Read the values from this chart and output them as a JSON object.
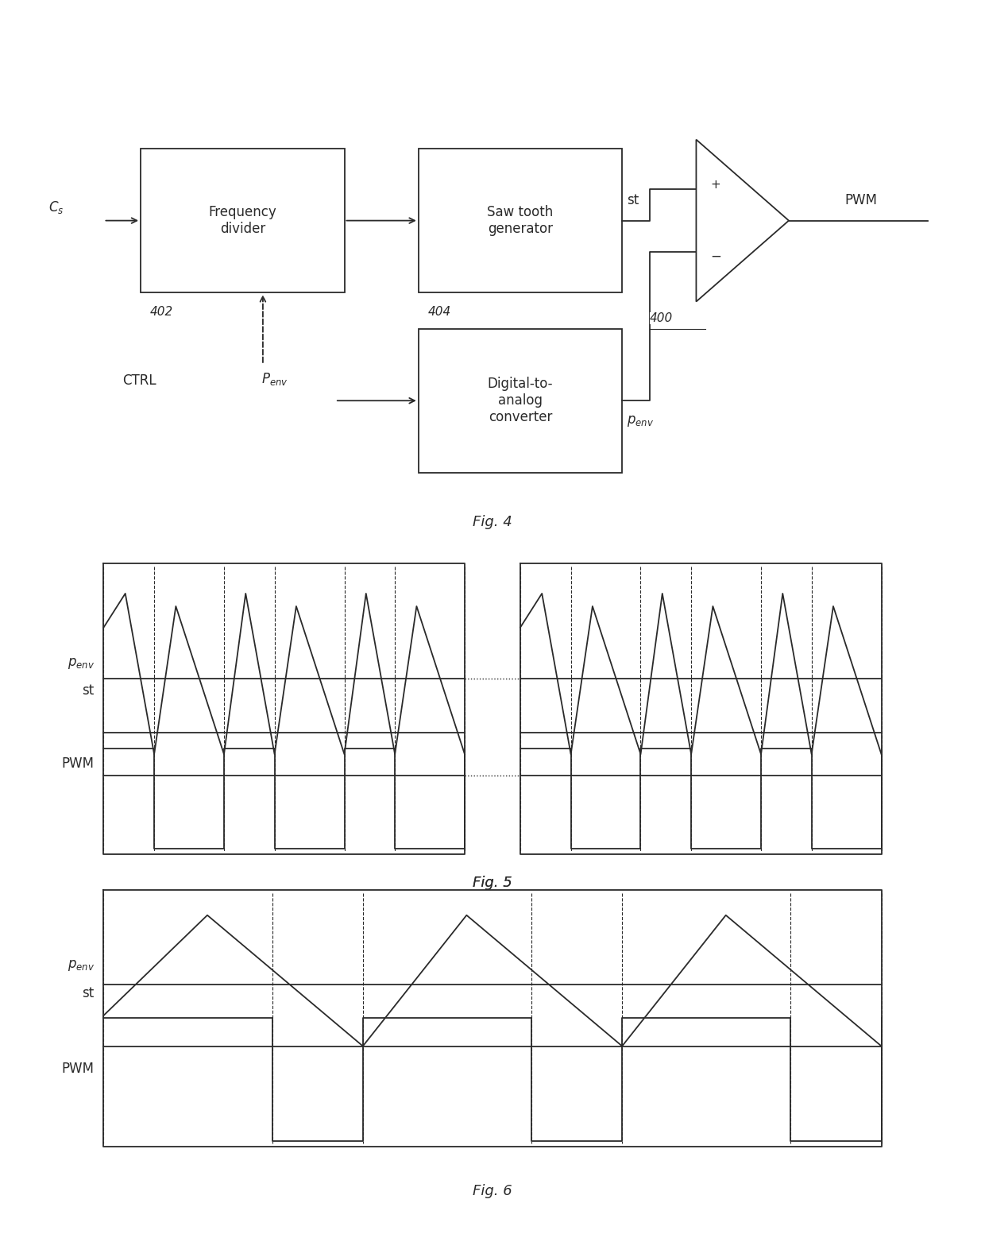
{
  "bg_color": "#ffffff",
  "line_color": "#2a2a2a",
  "fig4_caption": "Fig. 4",
  "fig5_caption": "Fig. 5",
  "fig6_caption": "Fig. 6",
  "block_freq_divider": "Frequency\ndivider",
  "block_saw": "Saw tooth\ngenerator",
  "block_dac": "Digital-to-\nanalog\nconverter",
  "label_cs": "$C_s$",
  "label_ctrl": "CTRL",
  "label_penv_in": "$P_{env}$",
  "label_st_out": "st",
  "label_penv_out": "$p_{env}$",
  "label_pwm": "PWM",
  "label_402": "402",
  "label_404": "404",
  "label_400": "400",
  "label_plus": "+",
  "label_minus": "−",
  "font_size_block": 12,
  "font_size_label": 12,
  "font_size_caption": 13,
  "font_size_small": 11
}
